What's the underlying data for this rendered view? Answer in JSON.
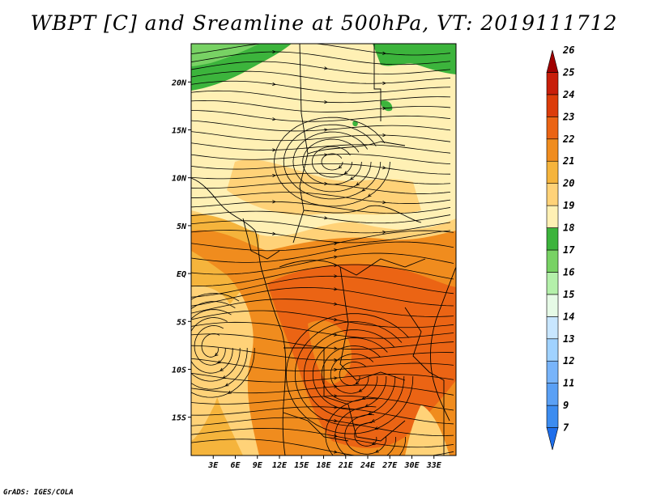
{
  "title": "WBPT [C] and Sreamline at 500hPa, VT: 2019111712",
  "credit": "GrADS: IGES/COLA",
  "map": {
    "lon_range": [
      0,
      36
    ],
    "lat_range": [
      -19,
      24
    ],
    "lat_ticks": [
      {
        "lat": 20,
        "label": "20N"
      },
      {
        "lat": 15,
        "label": "15N"
      },
      {
        "lat": 10,
        "label": "10N"
      },
      {
        "lat": 5,
        "label": "5N"
      },
      {
        "lat": 0,
        "label": "EQ"
      },
      {
        "lat": -5,
        "label": "5S"
      },
      {
        "lat": -10,
        "label": "10S"
      },
      {
        "lat": -15,
        "label": "15S"
      }
    ],
    "lon_ticks": [
      {
        "lon": 3,
        "label": "3E"
      },
      {
        "lon": 6,
        "label": "6E"
      },
      {
        "lon": 9,
        "label": "9E"
      },
      {
        "lon": 12,
        "label": "12E"
      },
      {
        "lon": 15,
        "label": "15E"
      },
      {
        "lon": 18,
        "label": "18E"
      },
      {
        "lon": 21,
        "label": "21E"
      },
      {
        "lon": 24,
        "label": "24E"
      },
      {
        "lon": 27,
        "label": "27E"
      },
      {
        "lon": 30,
        "label": "30E"
      },
      {
        "lon": 33,
        "label": "33E"
      }
    ]
  },
  "colorbar": {
    "levels": [
      "7",
      "9",
      "11",
      "12",
      "13",
      "14",
      "15",
      "16",
      "17",
      "18",
      "19",
      "20",
      "21",
      "22",
      "23",
      "24",
      "25",
      "26"
    ],
    "colors": [
      "#1e6eeb",
      "#3c8cf0",
      "#5aa0f5",
      "#78b4fa",
      "#a0d2ff",
      "#c8e6ff",
      "#e6fae6",
      "#b4f0aa",
      "#78d264",
      "#3cb43c",
      "#fff0b4",
      "#ffd278",
      "#f5b43c",
      "#f08c1e",
      "#eb6414",
      "#dc3c0a",
      "#c81e0a",
      "#a00000"
    ]
  },
  "field_colors": {
    "yellow": "#fff0b4",
    "light_orange": "#ffd278",
    "orange": "#f5b43c",
    "dark_orange": "#f08c1e",
    "red_orange": "#eb6414",
    "green": "#3cb43c",
    "light_green": "#78d264"
  }
}
